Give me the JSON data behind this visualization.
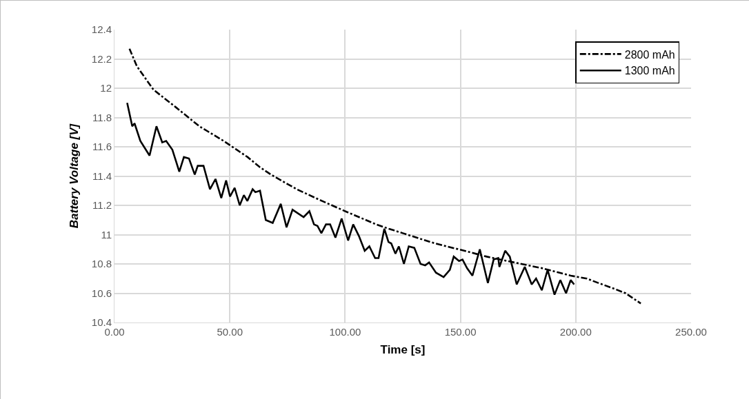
{
  "chart_data": {
    "type": "line",
    "xlabel": "Time [s]",
    "ylabel": "Battery Voltage [V]",
    "xlim": [
      0,
      250
    ],
    "xticks": [
      {
        "value": 0,
        "label": "0.00"
      },
      {
        "value": 50,
        "label": "50.00"
      },
      {
        "value": 100,
        "label": "100.00"
      },
      {
        "value": 150,
        "label": "150.00"
      },
      {
        "value": 200,
        "label": "200.00"
      },
      {
        "value": 250,
        "label": "250.00"
      }
    ],
    "ylim": [
      10.4,
      12.4
    ],
    "yticks": [
      10.4,
      10.6,
      10.8,
      11,
      11.2,
      11.4,
      11.6,
      11.8,
      12,
      12.2,
      12.4
    ],
    "grid": true,
    "legend": "top right",
    "marker": "none",
    "series": [
      {
        "name": "2800 mAh",
        "color": "#000000",
        "line_style": "dashdot",
        "x": [
          6.5,
          9.7,
          16.9,
          26.6,
          36.8,
          41,
          47.3,
          57.7,
          63.1,
          67.9,
          79,
          90,
          101.5,
          113.5,
          119,
          125,
          136.9,
          143.9,
          149.2,
          161.4,
          173.4,
          185.6,
          197.8,
          204.8,
          209.8,
          216.8,
          221.6,
          228.2
        ],
        "values": [
          12.27,
          12.15,
          11.99,
          11.87,
          11.74,
          11.7,
          11.64,
          11.53,
          11.46,
          11.41,
          11.31,
          11.23,
          11.15,
          11.07,
          11.04,
          11.01,
          10.95,
          10.92,
          10.9,
          10.85,
          10.81,
          10.77,
          10.72,
          10.7,
          10.67,
          10.63,
          10.6,
          10.53
        ]
      },
      {
        "name": "1300 mAh",
        "color": "#000000",
        "line_style": "solid",
        "x": [
          5.5,
          7.7,
          8.7,
          11.2,
          15.2,
          18.2,
          20.7,
          22.4,
          25.1,
          28.1,
          30.1,
          32.3,
          34.8,
          36.1,
          38.6,
          41.4,
          43.8,
          46.3,
          48.4,
          50.1,
          52.1,
          54.3,
          56.1,
          57.6,
          59.9,
          61.1,
          63.1,
          65.6,
          68.6,
          72.1,
          74.6,
          77.2,
          82,
          84.5,
          86.5,
          88,
          89.7,
          91.7,
          93.5,
          95.8,
          98.5,
          101.3,
          103.5,
          106,
          108.5,
          110.5,
          113,
          114.5,
          117,
          118.8,
          120,
          121.8,
          123.3,
          125.5,
          127.6,
          130,
          132.7,
          134.7,
          136.4,
          139.4,
          142.7,
          145.4,
          147.1,
          149.4,
          150.9,
          152.9,
          155.2,
          158.4,
          161.9,
          164.4,
          166.4,
          166.9,
          169.4,
          171.4,
          174.4,
          177.9,
          180.9,
          182.8,
          185.3,
          187.8,
          190.8,
          193.3,
          195.8,
          197.8,
          199.3
        ],
        "values": [
          11.9,
          11.74,
          11.76,
          11.64,
          11.54,
          11.74,
          11.63,
          11.64,
          11.58,
          11.43,
          11.53,
          11.52,
          11.41,
          11.47,
          11.47,
          11.31,
          11.38,
          11.25,
          11.37,
          11.26,
          11.32,
          11.2,
          11.27,
          11.23,
          11.31,
          11.29,
          11.3,
          11.1,
          11.08,
          11.21,
          11.05,
          11.17,
          11.12,
          11.16,
          11.07,
          11.06,
          11.01,
          11.07,
          11.07,
          10.98,
          11.11,
          10.96,
          11.07,
          10.99,
          10.89,
          10.92,
          10.84,
          10.84,
          11.04,
          10.95,
          10.94,
          10.87,
          10.92,
          10.8,
          10.92,
          10.91,
          10.8,
          10.79,
          10.81,
          10.74,
          10.71,
          10.76,
          10.85,
          10.82,
          10.83,
          10.77,
          10.72,
          10.9,
          10.67,
          10.83,
          10.84,
          10.78,
          10.89,
          10.85,
          10.66,
          10.78,
          10.66,
          10.7,
          10.62,
          10.76,
          10.59,
          10.69,
          10.6,
          10.69,
          10.66
        ]
      }
    ]
  }
}
